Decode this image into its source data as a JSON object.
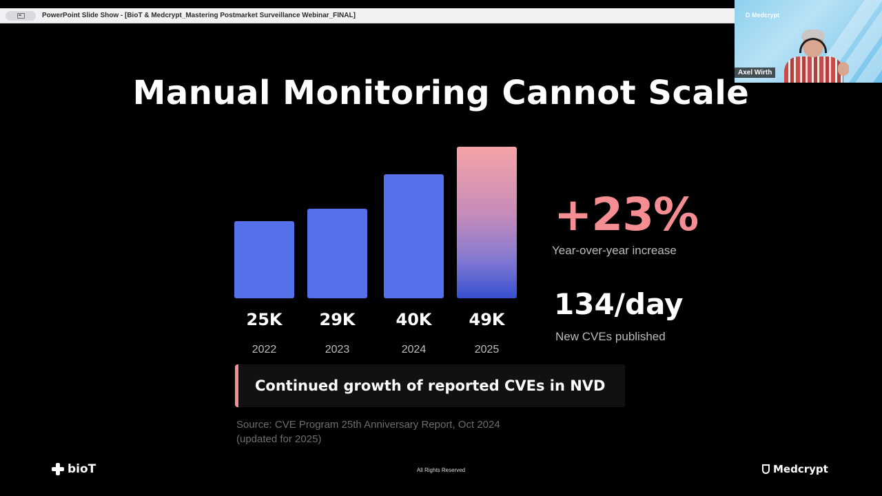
{
  "window": {
    "title": "PowerPoint Slide Show - [BioT & Medcrypt_Mastering Postmarket Surveillance Webinar_FINAL]"
  },
  "slide": {
    "title": "Manual Monitoring Cannot Scale",
    "stat_primary": {
      "value": "+23%",
      "caption": "Year-over-year increase",
      "color": "#f58e92"
    },
    "stat_secondary": {
      "value": "134/day",
      "caption": "New CVEs published"
    },
    "callout": "Continued growth of reported CVEs in NVD",
    "source_lines": [
      "Source: CVE Program 25th Anniversary Report, Oct 2024",
      "(updated for 2025)"
    ],
    "footer": {
      "left_logo": "bioT",
      "center": "All Rights Reserved",
      "right_logo": "Medcrypt"
    }
  },
  "chart_data": {
    "type": "bar",
    "categories": [
      "2022",
      "2023",
      "2024",
      "2025"
    ],
    "values": [
      25,
      29,
      40,
      49
    ],
    "value_labels": [
      "25K",
      "29K",
      "40K",
      "49K"
    ],
    "ylim": [
      0,
      49
    ],
    "highlight_index": 3,
    "colors": {
      "bar": "#5571ea",
      "highlight_top": "#f6a3a6",
      "highlight_bottom": "#3550cf"
    }
  },
  "video_tile": {
    "org": "D Medcrypt",
    "participant": "Axel Wirth"
  }
}
